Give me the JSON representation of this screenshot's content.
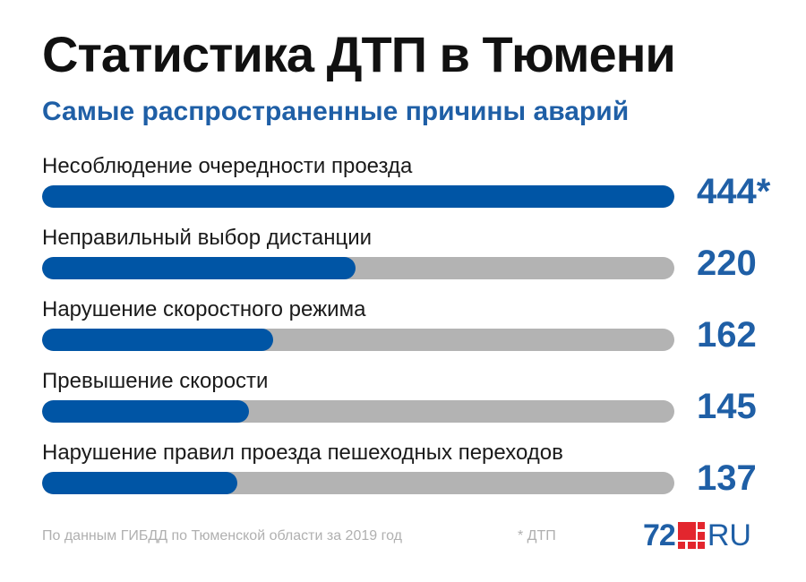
{
  "title": "Статистика ДТП в Тюмени",
  "subtitle": "Самые распространенные причины аварий",
  "colors": {
    "accent": "#0055a5",
    "track": "#b3b3b3",
    "value_text": "#1f5fa6",
    "logo_red": "#e3262e"
  },
  "chart_data": {
    "type": "bar",
    "orientation": "horizontal",
    "title": "Статистика ДТП в Тюмени",
    "subtitle": "Самые распространенные причины аварий",
    "categories": [
      "Несоблюдение очередности проезда",
      "Неправильный выбор дистанции",
      "Нарушение скоростного режима",
      "Превышение скорости",
      "Нарушение правил проезда пешеходных переходов"
    ],
    "values": [
      444,
      220,
      162,
      145,
      137
    ],
    "value_labels": [
      "444*",
      "220",
      "162",
      "145",
      "137"
    ],
    "xlim": [
      0,
      444
    ],
    "grid": false,
    "legend": "none"
  },
  "footer": {
    "source": "По данным ГИБДД по Тюменской области за 2019 год",
    "asterisk_note": "* ДТП"
  },
  "logo": {
    "number": "72",
    "suffix": "RU"
  }
}
